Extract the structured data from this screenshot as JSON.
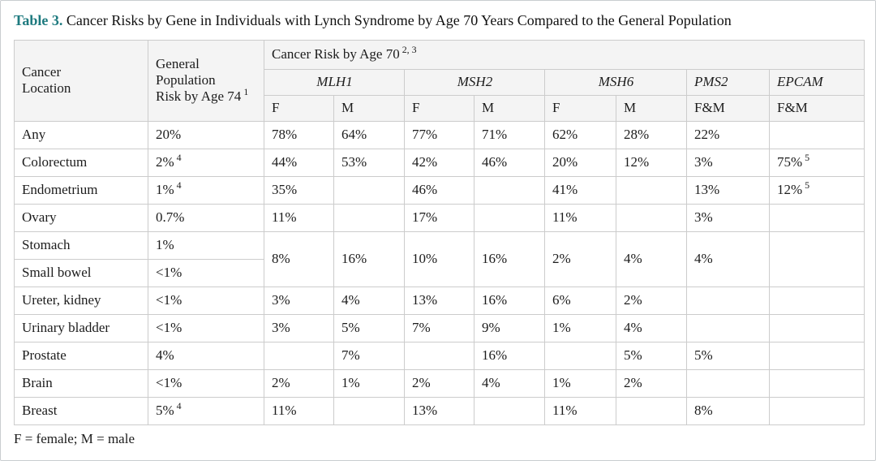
{
  "page": {
    "title_label": "Table 3.",
    "title_text": "Cancer Risks by Gene in Individuals with Lynch Syndrome by Age 70 Years Compared to the General Population",
    "footnote": "F = female; M = male"
  },
  "colors": {
    "accent_teal": "#1e7a7f",
    "header_bg": "#f4f4f4",
    "border": "#cccccc",
    "text": "#1c1c1c"
  },
  "table": {
    "header": {
      "cancer_location": "Cancer\nLocation",
      "general_population": "General\nPopulation\nRisk by Age 74",
      "general_population_sup": "1",
      "cancer_risk": "Cancer Risk by Age 70",
      "cancer_risk_sup": "2, 3",
      "genes": [
        {
          "name": "MLH1",
          "subcols": [
            "F",
            "M"
          ]
        },
        {
          "name": "MSH2",
          "subcols": [
            "F",
            "M"
          ]
        },
        {
          "name": "MSH6",
          "subcols": [
            "F",
            "M"
          ]
        },
        {
          "name": "PMS2",
          "subcols": [
            "F&M"
          ]
        },
        {
          "name": "EPCAM",
          "subcols": [
            "F&M"
          ]
        }
      ]
    },
    "rows": [
      {
        "location": "Any",
        "gen": "20%",
        "cells": [
          "78%",
          "64%",
          "77%",
          "71%",
          "62%",
          "28%",
          "22%",
          ""
        ]
      },
      {
        "location": "Colorectum",
        "gen": {
          "v": "2%",
          "sup": "4"
        },
        "cells": [
          "44%",
          "53%",
          "42%",
          "46%",
          "20%",
          "12%",
          "3%",
          {
            "v": "75%",
            "sup": "5"
          }
        ]
      },
      {
        "location": "Endometrium",
        "gen": {
          "v": "1%",
          "sup": "4"
        },
        "cells": [
          "35%",
          "",
          "46%",
          "",
          "41%",
          "",
          "13%",
          {
            "v": "12%",
            "sup": "5"
          }
        ]
      },
      {
        "location": "Ovary",
        "gen": "0.7%",
        "cells": [
          "11%",
          "",
          "17%",
          "",
          "11%",
          "",
          "3%",
          ""
        ]
      },
      {
        "location": "Stomach",
        "gen": "1%",
        "rowspan": 2,
        "cells": [
          "8%",
          "16%",
          "10%",
          "16%",
          "2%",
          "4%",
          "4%",
          ""
        ]
      },
      {
        "location": "Small bowel",
        "gen": "<1%"
      },
      {
        "location": "Ureter, kidney",
        "gen": "<1%",
        "cells": [
          "3%",
          "4%",
          "13%",
          "16%",
          "6%",
          "2%",
          "",
          ""
        ]
      },
      {
        "location": "Urinary bladder",
        "gen": "<1%",
        "cells": [
          "3%",
          "5%",
          "7%",
          "9%",
          "1%",
          "4%",
          "",
          ""
        ]
      },
      {
        "location": "Prostate",
        "gen": "4%",
        "cells": [
          "",
          "7%",
          "",
          "16%",
          "",
          "5%",
          "5%",
          ""
        ]
      },
      {
        "location": "Brain",
        "gen": "<1%",
        "cells": [
          "2%",
          "1%",
          "2%",
          "4%",
          "1%",
          "2%",
          "",
          ""
        ]
      },
      {
        "location": "Breast",
        "gen": {
          "v": "5%",
          "sup": "4"
        },
        "cells": [
          "11%",
          "",
          "13%",
          "",
          "11%",
          "",
          "8%",
          ""
        ]
      }
    ]
  }
}
